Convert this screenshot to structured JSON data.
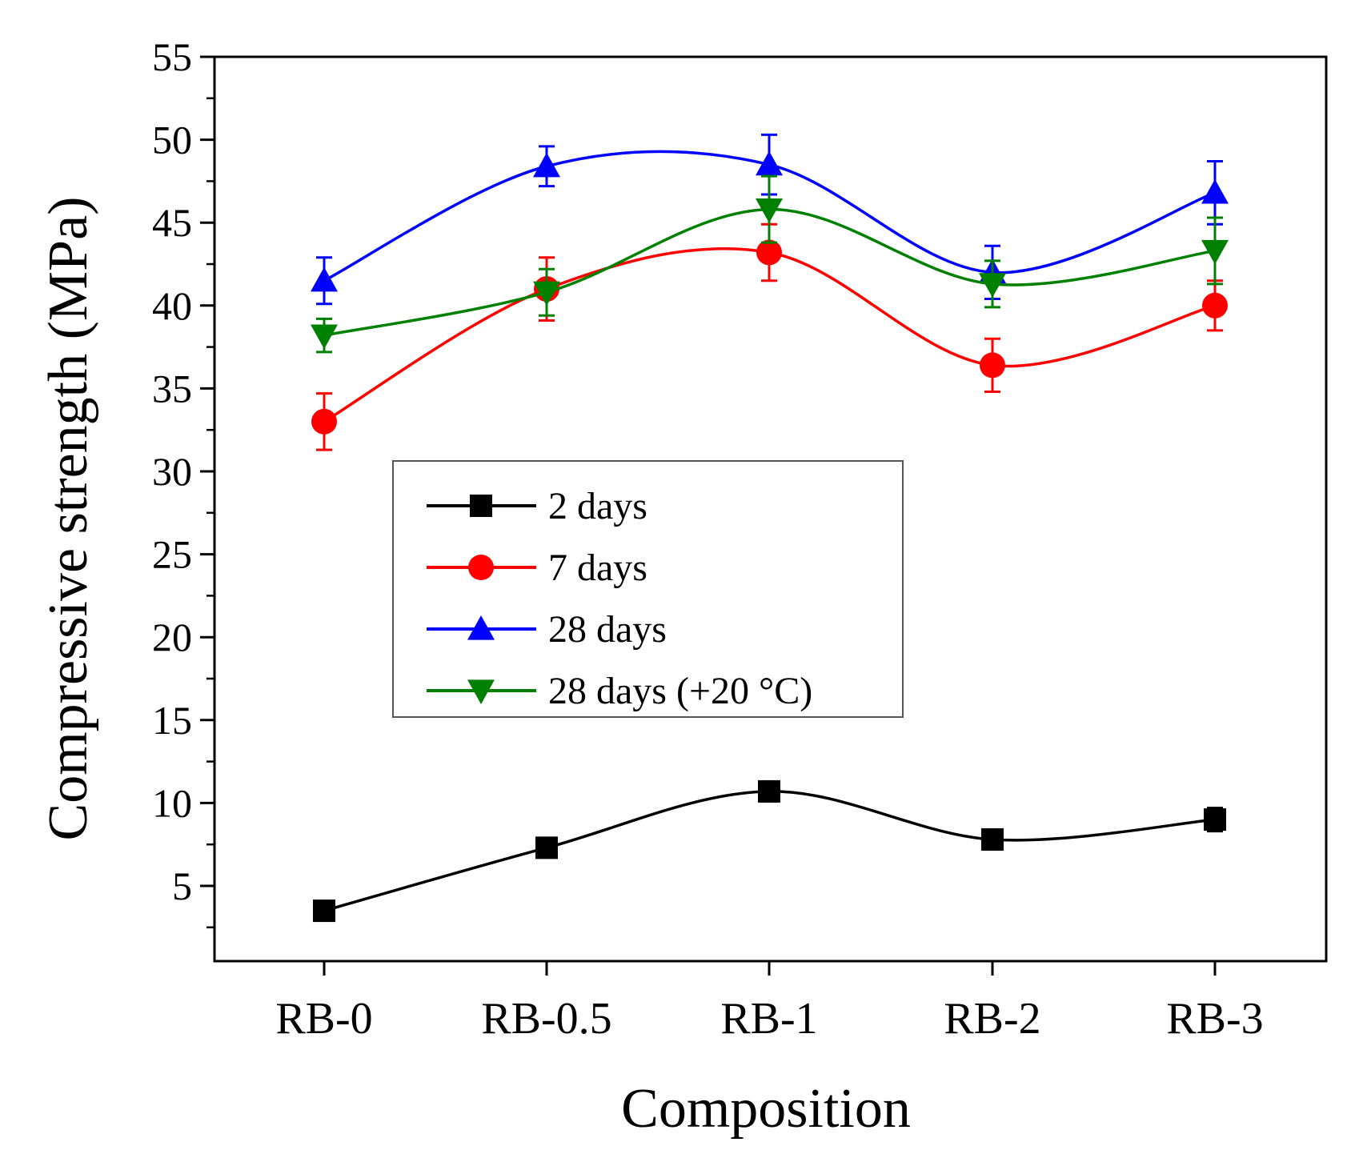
{
  "chart_data": {
    "type": "line",
    "title": "",
    "xlabel": "Composition",
    "ylabel": "Compressive strength (MPa)",
    "categories": [
      "RB-0",
      "RB-0.5",
      "RB-1",
      "RB-2",
      "RB-3"
    ],
    "ylim": [
      0,
      55
    ],
    "yticks": [
      5,
      10,
      15,
      20,
      25,
      30,
      35,
      40,
      45,
      50,
      55
    ],
    "grid": false,
    "legend_position": "center-left",
    "smooth": true,
    "series": [
      {
        "name": "2 days",
        "color": "#000000",
        "marker": "square",
        "values": [
          3.5,
          7.3,
          10.7,
          7.8,
          9.0
        ],
        "errors": [
          0.3,
          0.5,
          0.6,
          0.6,
          0.7
        ]
      },
      {
        "name": "7 days",
        "color": "#ff0000",
        "marker": "circle",
        "values": [
          33.0,
          41.0,
          43.2,
          36.4,
          40.0
        ],
        "errors": [
          1.7,
          1.9,
          1.7,
          1.6,
          1.5
        ]
      },
      {
        "name": "28 days",
        "color": "#0000ff",
        "marker": "triangle-up",
        "values": [
          41.5,
          48.4,
          48.5,
          42.0,
          46.8
        ],
        "errors": [
          1.4,
          1.2,
          1.8,
          1.6,
          1.9
        ]
      },
      {
        "name": "28 days (+20 °C)",
        "color": "#008000",
        "marker": "triangle-down",
        "values": [
          38.2,
          40.8,
          45.8,
          41.3,
          43.3
        ],
        "errors": [
          1.0,
          1.4,
          2.0,
          1.4,
          2.0
        ]
      }
    ]
  }
}
